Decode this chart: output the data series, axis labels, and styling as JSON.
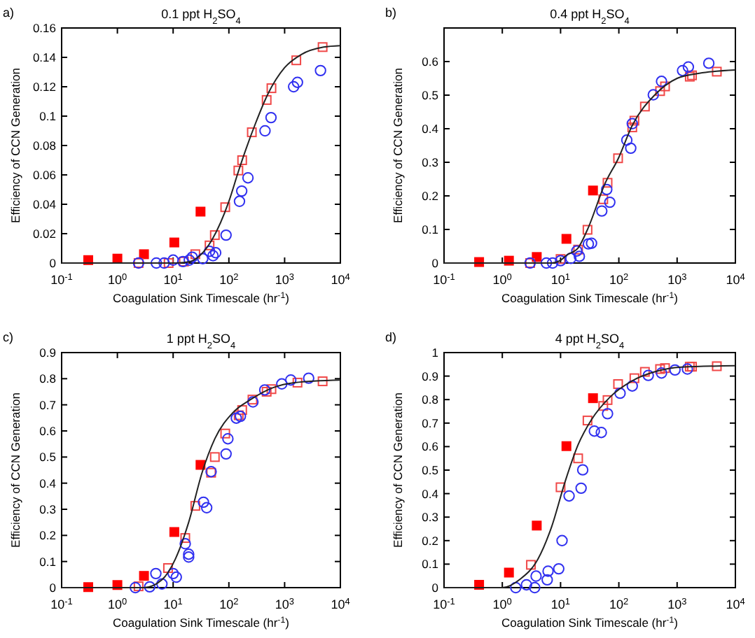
{
  "chart_data": [
    {
      "type": "scatter",
      "title": "0.1 ppt H$_{2}$SO$_{4}$",
      "xlabel": "Coagulation Sink Timescale (hr$^{-1}$)",
      "ylabel": "Efficiency of CCN Generation",
      "annotations": [
        "a)"
      ],
      "log": "x",
      "xlim": [
        0.1,
        10000
      ],
      "xticks": [
        {
          "value": 0.1,
          "label": "10$^{-1}$"
        },
        {
          "value": 1,
          "label": "10$^{0}$"
        },
        {
          "value": 10,
          "label": "10$^{1}$"
        },
        {
          "value": 100,
          "label": "10$^{2}$"
        },
        {
          "value": 1000,
          "label": "10$^{3}$"
        },
        {
          "value": 10000,
          "label": "10$^{4}$"
        }
      ],
      "ylim": [
        0,
        0.16
      ],
      "yticks": [
        0,
        0.02,
        0.04,
        0.06,
        0.08,
        0.1,
        0.12,
        0.14,
        0.16
      ],
      "series": [
        {
          "type": "scatter",
          "marker": "square",
          "color": "#ff0000",
          "x": [
            0.3,
            1,
            3,
            10.5,
            31
          ],
          "values": [
            0.002,
            0.003,
            0.006,
            0.014,
            0.035
          ]
        },
        {
          "type": "scatter",
          "marker": "square",
          "color": "#f04848",
          "x": [
            2.4,
            8.3,
            15.6,
            25,
            45,
            56,
            86,
            148,
            173,
            258,
            476,
            580,
            1620,
            4800
          ],
          "values": [
            0,
            0,
            0.001,
            0.006,
            0.012,
            0.019,
            0.038,
            0.063,
            0.07,
            0.089,
            0.111,
            0.119,
            0.138,
            0.147
          ]
        },
        {
          "type": "scatter",
          "marker": "circle",
          "color": "#3030f0",
          "x": [
            2.4,
            5,
            6.9,
            10,
            15,
            19.5,
            22,
            34,
            45,
            52,
            58,
            89,
            155,
            170,
            220,
            445,
            570,
            1450,
            1700,
            4400
          ],
          "values": [
            0,
            0,
            0,
            0.002,
            0.001,
            0.002,
            0.004,
            0.003,
            0.008,
            0.005,
            0.007,
            0.019,
            0.042,
            0.049,
            0.058,
            0.09,
            0.099,
            0.12,
            0.123,
            0.131
          ]
        },
        {
          "type": "line",
          "marker": "none",
          "color": "#222222",
          "x": [
            0.1,
            10,
            20,
            30,
            50,
            100,
            150,
            200,
            300,
            500,
            1000,
            2000,
            5000,
            10000
          ],
          "values": [
            0,
            0,
            0.001,
            0.005,
            0.016,
            0.042,
            0.063,
            0.077,
            0.095,
            0.115,
            0.133,
            0.142,
            0.147,
            0.148
          ]
        }
      ]
    },
    {
      "type": "scatter",
      "title": "0.4 ppt H$_{2}$SO$_{4}$",
      "xlabel": "Coagulation Sink Timescale (hr$^{-1}$)",
      "ylabel": "Efficiency of CCN Generation",
      "annotations": [
        "b)"
      ],
      "log": "x",
      "xlim": [
        0.1,
        10000
      ],
      "xticks": [
        {
          "value": 0.1,
          "label": "10$^{-1}$"
        },
        {
          "value": 1,
          "label": "10$^{0}$"
        },
        {
          "value": 10,
          "label": "10$^{1}$"
        },
        {
          "value": 100,
          "label": "10$^{2}$"
        },
        {
          "value": 1000,
          "label": "10$^{3}$"
        },
        {
          "value": 10000,
          "label": "10$^{4}$"
        }
      ],
      "ylim": [
        0,
        0.7
      ],
      "yticks": [
        0,
        0.1,
        0.2,
        0.3,
        0.4,
        0.5,
        0.6
      ],
      "series": [
        {
          "type": "scatter",
          "marker": "square",
          "color": "#ff0000",
          "x": [
            0.4,
            1.3,
            3.9,
            12.6,
            36
          ],
          "values": [
            0.003,
            0.007,
            0.018,
            0.072,
            0.216
          ]
        },
        {
          "type": "scatter",
          "marker": "square",
          "color": "#f04848",
          "x": [
            3,
            10,
            20,
            29,
            54,
            64,
            97,
            170,
            185,
            280,
            510,
            620,
            1650,
            1800,
            4800
          ],
          "values": [
            0,
            0.012,
            0.04,
            0.099,
            0.19,
            0.239,
            0.312,
            0.404,
            0.424,
            0.466,
            0.512,
            0.526,
            0.555,
            0.559,
            0.57
          ]
        },
        {
          "type": "scatter",
          "marker": "circle",
          "color": "#3030f0",
          "x": [
            3,
            5.7,
            7.3,
            10,
            15,
            19,
            21,
            30,
            34,
            51,
            62,
            70,
            137,
            160,
            170,
            390,
            540,
            1240,
            1560,
            3500
          ],
          "values": [
            0,
            0,
            0,
            0.007,
            0.014,
            0.036,
            0.02,
            0.057,
            0.059,
            0.155,
            0.219,
            0.181,
            0.366,
            0.342,
            0.415,
            0.501,
            0.541,
            0.573,
            0.584,
            0.595
          ]
        },
        {
          "type": "line",
          "marker": "none",
          "color": "#222222",
          "x": [
            0.1,
            7,
            10,
            12.6,
            20,
            29,
            59,
            97,
            170,
            410,
            1000,
            2400,
            10000
          ],
          "values": [
            0,
            0,
            0.008,
            0.023,
            0.045,
            0.1,
            0.24,
            0.31,
            0.41,
            0.5,
            0.55,
            0.565,
            0.575
          ]
        }
      ]
    },
    {
      "type": "scatter",
      "title": "1 ppt H$_{2}$SO$_{4}$",
      "xlabel": "Coagulation Sink Timescale (hr$^{-1}$)",
      "ylabel": "Efficiency of CCN Generation",
      "annotations": [
        "c)"
      ],
      "log": "x",
      "xlim": [
        0.1,
        10000
      ],
      "xticks": [
        {
          "value": 0.1,
          "label": "10$^{-1}$"
        },
        {
          "value": 1,
          "label": "10$^{0}$"
        },
        {
          "value": 10,
          "label": "10$^{1}$"
        },
        {
          "value": 100,
          "label": "10$^{2}$"
        },
        {
          "value": 1000,
          "label": "10$^{3}$"
        },
        {
          "value": 10000,
          "label": "10$^{4}$"
        }
      ],
      "ylim": [
        0,
        0.9
      ],
      "yticks": [
        0,
        0.1,
        0.2,
        0.3,
        0.4,
        0.5,
        0.6,
        0.7,
        0.8,
        0.9
      ],
      "series": [
        {
          "type": "scatter",
          "marker": "square",
          "color": "#ff0000",
          "x": [
            0.3,
            1,
            3,
            10.5,
            31
          ],
          "values": [
            0.002,
            0.01,
            0.045,
            0.213,
            0.47
          ]
        },
        {
          "type": "scatter",
          "marker": "square",
          "color": "#f04848",
          "x": [
            2.4,
            8.1,
            16.5,
            25,
            48,
            56,
            86,
            150,
            173,
            265,
            476,
            580,
            1700,
            4800
          ],
          "values": [
            0.005,
            0.075,
            0.19,
            0.313,
            0.44,
            0.5,
            0.59,
            0.66,
            0.68,
            0.72,
            0.75,
            0.76,
            0.785,
            0.79
          ]
        },
        {
          "type": "scatter",
          "marker": "circle",
          "color": "#3030f0",
          "x": [
            2.1,
            3.8,
            4.9,
            6.3,
            10,
            11.4,
            16.5,
            19,
            19,
            35,
            40,
            48,
            89,
            96,
            136,
            161,
            270,
            440,
            890,
            1290,
            2700
          ],
          "values": [
            0,
            0.003,
            0.054,
            0.014,
            0.054,
            0.04,
            0.168,
            0.128,
            0.117,
            0.327,
            0.306,
            0.444,
            0.512,
            0.57,
            0.649,
            0.656,
            0.711,
            0.757,
            0.78,
            0.795,
            0.802
          ]
        },
        {
          "type": "line",
          "marker": "none",
          "color": "#222222",
          "x": [
            0.1,
            3,
            6.3,
            11,
            19,
            33,
            56,
            118,
            245,
            610,
            1500,
            10000
          ],
          "values": [
            0,
            0,
            0.03,
            0.11,
            0.25,
            0.44,
            0.57,
            0.67,
            0.72,
            0.765,
            0.785,
            0.795
          ]
        }
      ]
    },
    {
      "type": "scatter",
      "title": "4 ppt H$_{2}$SO$_{4}$",
      "xlabel": "Coagulation Sink Timescale (hr$^{-1}$)",
      "ylabel": "Efficiency of CCN Generation",
      "annotations": [
        "d)"
      ],
      "log": "x",
      "xlim": [
        0.1,
        10000
      ],
      "xticks": [
        {
          "value": 0.1,
          "label": "10$^{-1}$"
        },
        {
          "value": 1,
          "label": "10$^{0}$"
        },
        {
          "value": 10,
          "label": "10$^{1}$"
        },
        {
          "value": 100,
          "label": "10$^{2}$"
        },
        {
          "value": 1000,
          "label": "10$^{3}$"
        },
        {
          "value": 10000,
          "label": "10$^{4}$"
        }
      ],
      "ylim": [
        0,
        1
      ],
      "yticks": [
        0,
        0.1,
        0.2,
        0.3,
        0.4,
        0.5,
        0.6,
        0.7,
        0.8,
        0.9,
        1
      ],
      "series": [
        {
          "type": "scatter",
          "marker": "square",
          "color": "#ff0000",
          "x": [
            0.4,
            1.3,
            3.9,
            12.6,
            36
          ],
          "values": [
            0.012,
            0.064,
            0.264,
            0.602,
            0.806
          ]
        },
        {
          "type": "scatter",
          "marker": "square",
          "color": "#f04848",
          "x": [
            3.1,
            10,
            20,
            29,
            54,
            64,
            97,
            185,
            280,
            510,
            620,
            1650,
            1800,
            4800
          ],
          "values": [
            0.097,
            0.427,
            0.55,
            0.711,
            0.773,
            0.798,
            0.866,
            0.891,
            0.918,
            0.93,
            0.934,
            0.94,
            0.94,
            0.942
          ]
        },
        {
          "type": "scatter",
          "marker": "circle",
          "color": "#3030f0",
          "x": [
            1.7,
            2.6,
            3.6,
            3.8,
            6.1,
            5.9,
            9.3,
            10.6,
            14,
            22.5,
            24,
            38,
            50,
            64,
            105,
            170,
            320,
            540,
            920,
            1500
          ],
          "values": [
            0,
            0.012,
            0,
            0.049,
            0.07,
            0.033,
            0.08,
            0.2,
            0.39,
            0.423,
            0.501,
            0.666,
            0.66,
            0.74,
            0.827,
            0.858,
            0.903,
            0.913,
            0.926,
            0.93
          ]
        },
        {
          "type": "line",
          "marker": "none",
          "color": "#222222",
          "x": [
            0.1,
            1,
            2,
            4.1,
            7,
            12,
            20,
            34,
            70,
            170,
            410,
            1200,
            10000
          ],
          "values": [
            0,
            0,
            0.035,
            0.122,
            0.258,
            0.452,
            0.608,
            0.715,
            0.81,
            0.88,
            0.918,
            0.938,
            0.944
          ]
        }
      ]
    }
  ]
}
